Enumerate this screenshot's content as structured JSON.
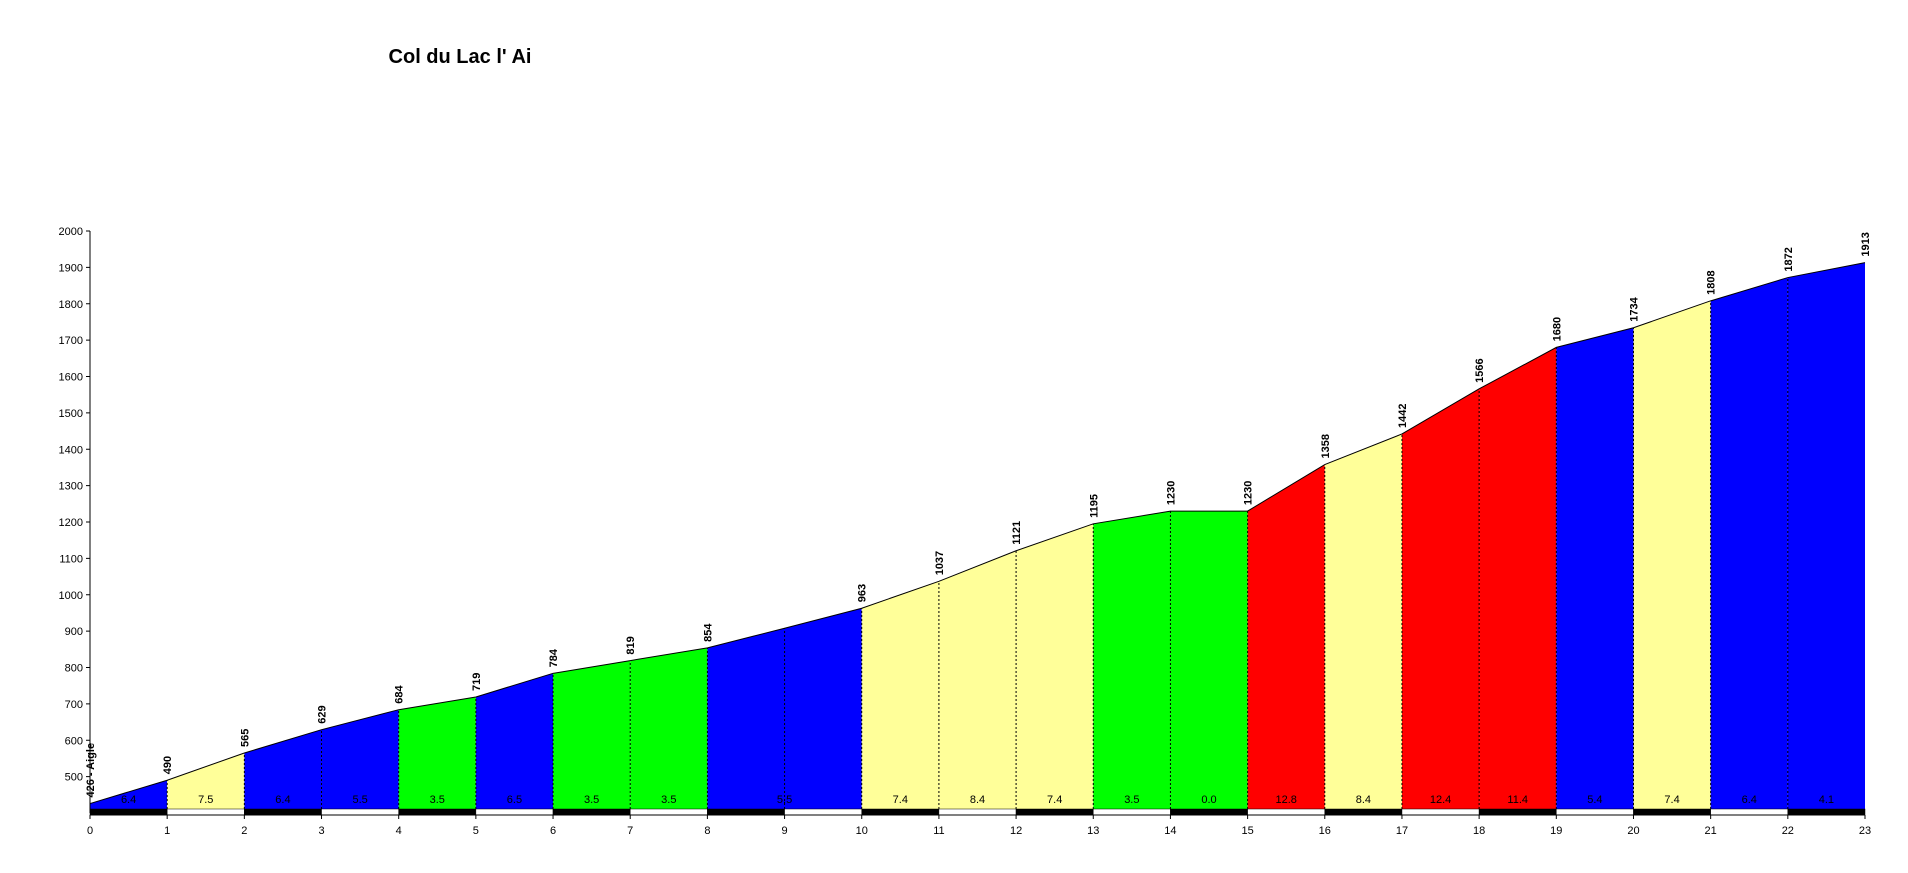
{
  "chart_data": {
    "type": "profile",
    "title": "Col du Lac l' Ai",
    "x": [
      0,
      1,
      2,
      3,
      4,
      5,
      6,
      7,
      8,
      9,
      10,
      11,
      12,
      13,
      14,
      15,
      16,
      17,
      18,
      19,
      20,
      21,
      22,
      23
    ],
    "values": [
      426,
      490,
      565,
      629,
      684,
      719,
      784,
      819,
      854,
      908,
      963,
      1037,
      1121,
      1195,
      1230,
      1230,
      1358,
      1442,
      1566,
      1680,
      1734,
      1808,
      1872,
      1913
    ],
    "value_labels": [
      "426 - Aigle",
      "490",
      "565",
      "629",
      "684",
      "719",
      "784",
      "819",
      "854",
      null,
      "963",
      "1037",
      "1121",
      "1195",
      "1230",
      "1230",
      "1358",
      "1442",
      "1566",
      "1680",
      "1734",
      "1808",
      "1872",
      "1913"
    ],
    "segments": [
      {
        "start": 0,
        "end": 1,
        "gradient": 6.4,
        "color": "#0000ff"
      },
      {
        "start": 1,
        "end": 2,
        "gradient": 7.5,
        "color": "#ffff99"
      },
      {
        "start": 2,
        "end": 3,
        "gradient": 6.4,
        "color": "#0000ff"
      },
      {
        "start": 3,
        "end": 4,
        "gradient": 5.5,
        "color": "#0000ff"
      },
      {
        "start": 4,
        "end": 5,
        "gradient": 3.5,
        "color": "#00ff00"
      },
      {
        "start": 5,
        "end": 6,
        "gradient": 6.5,
        "color": "#0000ff"
      },
      {
        "start": 6,
        "end": 7,
        "gradient": 3.5,
        "color": "#00ff00"
      },
      {
        "start": 7,
        "end": 8,
        "gradient": 3.5,
        "color": "#00ff00"
      },
      {
        "start": 8,
        "end": 10,
        "gradient": 5.5,
        "color": "#0000ff"
      },
      {
        "start": 10,
        "end": 11,
        "gradient": 7.4,
        "color": "#ffff99"
      },
      {
        "start": 11,
        "end": 12,
        "gradient": 8.4,
        "color": "#ffff99"
      },
      {
        "start": 12,
        "end": 13,
        "gradient": 7.4,
        "color": "#ffff99"
      },
      {
        "start": 13,
        "end": 14,
        "gradient": 3.5,
        "color": "#00ff00"
      },
      {
        "start": 14,
        "end": 15,
        "gradient": 0,
        "gradient_label": "0.0",
        "color": "#00ff00"
      },
      {
        "start": 15,
        "end": 16,
        "gradient": 12.8,
        "color": "#ff0000"
      },
      {
        "start": 16,
        "end": 17,
        "gradient": 8.4,
        "color": "#ffff99"
      },
      {
        "start": 17,
        "end": 18,
        "gradient": 12.4,
        "color": "#ff0000"
      },
      {
        "start": 18,
        "end": 19,
        "gradient": 11.4,
        "color": "#ff0000"
      },
      {
        "start": 19,
        "end": 20,
        "gradient": 5.4,
        "color": "#0000ff"
      },
      {
        "start": 20,
        "end": 21,
        "gradient": 7.4,
        "color": "#ffff99"
      },
      {
        "start": 21,
        "end": 22,
        "gradient": 6.4,
        "color": "#0000ff"
      },
      {
        "start": 22,
        "end": 23,
        "gradient": 4.1,
        "color": "#0000ff"
      }
    ],
    "xlim": [
      0,
      23
    ],
    "xticks": [
      0,
      1,
      2,
      3,
      4,
      5,
      6,
      7,
      8,
      9,
      10,
      11,
      12,
      13,
      14,
      15,
      16,
      17,
      18,
      19,
      20,
      21,
      22,
      23
    ],
    "ylim": [
      400,
      2000
    ],
    "yticks": [
      500,
      600,
      700,
      800,
      900,
      1000,
      1100,
      1200,
      1300,
      1400,
      1500,
      1600,
      1700,
      1800,
      1900,
      2000
    ]
  }
}
